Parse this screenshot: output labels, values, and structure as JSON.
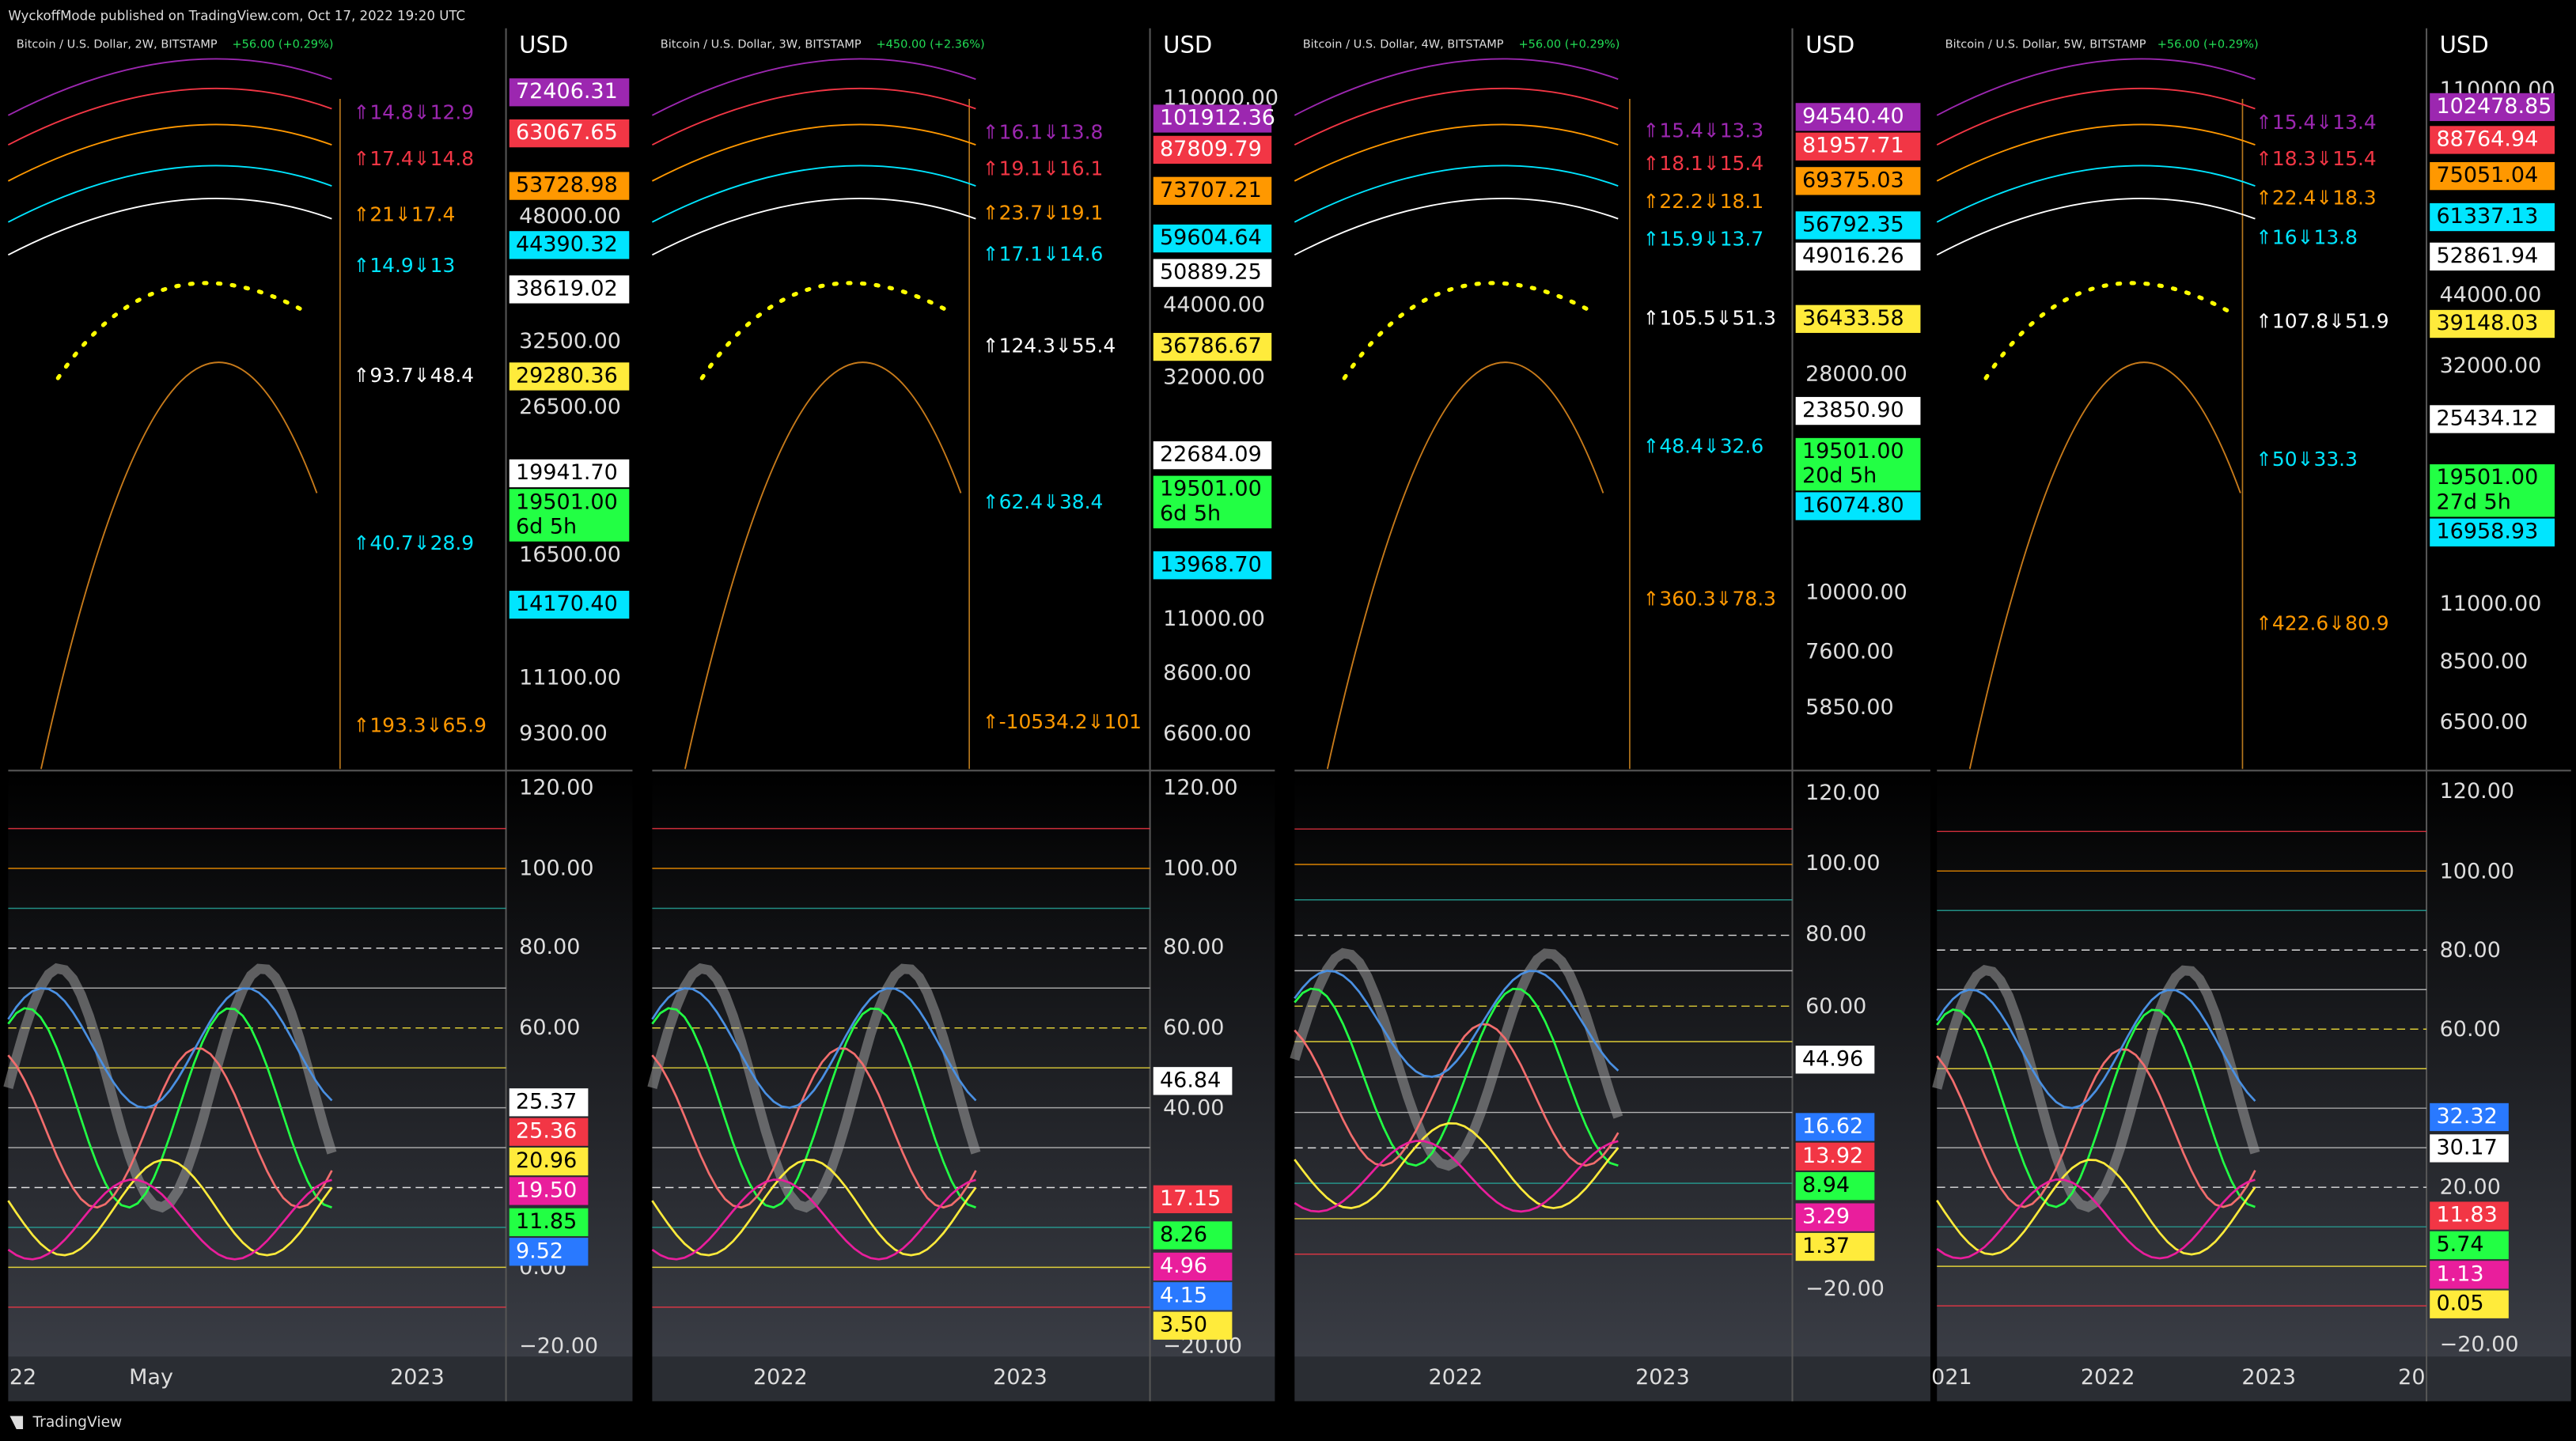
{
  "header": {
    "text": "WyckoffMode published on TradingView.com, Oct 17, 2022 19:20 UTC"
  },
  "footer": {
    "brand": "TradingView"
  },
  "panels": [
    {
      "title": "Bitcoin / U.S. Dollar, 2W, BITSTAMP",
      "change": "+56.00 (+0.29%)",
      "currency": "USD",
      "price_axis": [
        "48000.00",
        "32500.00",
        "26500.00",
        "16500.00",
        "11100.00",
        "9300.00"
      ],
      "price_tags": [
        {
          "label": "72406.31",
          "color": "#9c27b0"
        },
        {
          "label": "63067.65",
          "color": "#f23645"
        },
        {
          "label": "53728.98",
          "color": "#ff9800"
        },
        {
          "label": "44390.32",
          "color": "#00e5ff"
        },
        {
          "label": "38619.02",
          "color": "#ffffff"
        },
        {
          "label": "29280.36",
          "color": "#ffeb3b"
        },
        {
          "label": "19941.70",
          "color": "#ffffff"
        },
        {
          "label": "19501.00",
          "countdown": "6d 5h",
          "color": "#22ff44"
        },
        {
          "label": "14170.40",
          "color": "#00e5ff"
        }
      ],
      "annotations": [
        {
          "text": "⇑14.8⇓12.9",
          "color": "#9c27b0"
        },
        {
          "text": "⇑17.4⇓14.8",
          "color": "#f23645"
        },
        {
          "text": "⇑21⇓17.4",
          "color": "#ff9800"
        },
        {
          "text": "⇑14.9⇓13",
          "color": "#00e5ff"
        },
        {
          "text": "⇑93.7⇓48.4",
          "color": "#ffffff"
        },
        {
          "text": "⇑40.7⇓28.9",
          "color": "#00e5ff"
        },
        {
          "text": "⇑193.3⇓65.9",
          "color": "#ff9800"
        }
      ],
      "osc_axis": [
        "120.00",
        "100.00",
        "80.00",
        "60.00",
        "0.00",
        "−20.00"
      ],
      "osc_tags": [
        {
          "label": "25.37",
          "color": "#ffffff"
        },
        {
          "label": "25.36",
          "color": "#f23645"
        },
        {
          "label": "20.96",
          "color": "#ffeb3b"
        },
        {
          "label": "19.50",
          "color": "#e91e9c"
        },
        {
          "label": "11.85",
          "color": "#22ff44"
        },
        {
          "label": "9.52",
          "color": "#2979ff"
        }
      ],
      "time_axis": [
        "22",
        "May",
        "2023"
      ]
    },
    {
      "title": "Bitcoin / U.S. Dollar, 3W, BITSTAMP",
      "change": "+450.00 (+2.36%)",
      "currency": "USD",
      "price_axis": [
        "110000.00",
        "44000.00",
        "32000.00",
        "11000.00",
        "8600.00",
        "6600.00"
      ],
      "price_tags": [
        {
          "label": "101912.36",
          "color": "#9c27b0"
        },
        {
          "label": "87809.79",
          "color": "#f23645"
        },
        {
          "label": "73707.21",
          "color": "#ff9800"
        },
        {
          "label": "59604.64",
          "color": "#00e5ff"
        },
        {
          "label": "50889.25",
          "color": "#ffffff"
        },
        {
          "label": "36786.67",
          "color": "#ffeb3b"
        },
        {
          "label": "22684.09",
          "color": "#ffffff"
        },
        {
          "label": "19501.00",
          "countdown": "6d 5h",
          "color": "#22ff44"
        },
        {
          "label": "13968.70",
          "color": "#00e5ff"
        }
      ],
      "annotations": [
        {
          "text": "⇑16.1⇓13.8",
          "color": "#9c27b0"
        },
        {
          "text": "⇑19.1⇓16.1",
          "color": "#f23645"
        },
        {
          "text": "⇑23.7⇓19.1",
          "color": "#ff9800"
        },
        {
          "text": "⇑17.1⇓14.6",
          "color": "#00e5ff"
        },
        {
          "text": "⇑124.3⇓55.4",
          "color": "#ffffff"
        },
        {
          "text": "⇑62.4⇓38.4",
          "color": "#00e5ff"
        },
        {
          "text": "⇑-10534.2⇓101",
          "color": "#ff9800"
        }
      ],
      "osc_axis": [
        "120.00",
        "100.00",
        "80.00",
        "60.00",
        "40.00",
        "−20.00"
      ],
      "osc_tags": [
        {
          "label": "46.84",
          "color": "#ffffff"
        },
        {
          "label": "17.15",
          "color": "#f23645"
        },
        {
          "label": "8.26",
          "color": "#22ff44"
        },
        {
          "label": "4.96",
          "color": "#e91e9c"
        },
        {
          "label": "4.15",
          "color": "#2979ff"
        },
        {
          "label": "3.50",
          "color": "#ffeb3b"
        }
      ],
      "time_axis": [
        "2022",
        "2023"
      ]
    },
    {
      "title": "Bitcoin / U.S. Dollar, 4W, BITSTAMP",
      "change": "+56.00 (+0.29%)",
      "currency": "USD",
      "price_axis": [
        "28000.00",
        "10000.00",
        "7600.00",
        "5850.00"
      ],
      "price_tags": [
        {
          "label": "94540.40",
          "color": "#9c27b0"
        },
        {
          "label": "81957.71",
          "color": "#f23645"
        },
        {
          "label": "69375.03",
          "color": "#ff9800"
        },
        {
          "label": "56792.35",
          "color": "#00e5ff"
        },
        {
          "label": "49016.26",
          "color": "#ffffff"
        },
        {
          "label": "36433.58",
          "color": "#ffeb3b"
        },
        {
          "label": "23850.90",
          "color": "#ffffff"
        },
        {
          "label": "19501.00",
          "countdown": "20d 5h",
          "color": "#22ff44"
        },
        {
          "label": "16074.80",
          "color": "#00e5ff"
        }
      ],
      "annotations": [
        {
          "text": "⇑15.4⇓13.3",
          "color": "#9c27b0"
        },
        {
          "text": "⇑18.1⇓15.4",
          "color": "#f23645"
        },
        {
          "text": "⇑22.2⇓18.1",
          "color": "#ff9800"
        },
        {
          "text": "⇑15.9⇓13.7",
          "color": "#00e5ff"
        },
        {
          "text": "⇑105.5⇓51.3",
          "color": "#ffffff"
        },
        {
          "text": "⇑48.4⇓32.6",
          "color": "#00e5ff"
        },
        {
          "text": "⇑360.3⇓78.3",
          "color": "#ff9800"
        }
      ],
      "osc_axis": [
        "120.00",
        "100.00",
        "80.00",
        "60.00",
        "−20.00"
      ],
      "osc_tags": [
        {
          "label": "44.96",
          "color": "#ffffff"
        },
        {
          "label": "16.62",
          "color": "#2979ff"
        },
        {
          "label": "13.92",
          "color": "#f23645"
        },
        {
          "label": "8.94",
          "color": "#22ff44"
        },
        {
          "label": "3.29",
          "color": "#e91e9c"
        },
        {
          "label": "1.37",
          "color": "#ffeb3b"
        }
      ],
      "time_axis": [
        "2022",
        "2023"
      ]
    },
    {
      "title": "Bitcoin / U.S. Dollar, 5W, BITSTAMP",
      "change": "+56.00 (+0.29%)",
      "currency": "USD",
      "price_axis": [
        "110000.00",
        "44000.00",
        "32000.00",
        "11000.00",
        "8500.00",
        "6500.00"
      ],
      "price_tags": [
        {
          "label": "102478.85",
          "color": "#9c27b0"
        },
        {
          "label": "88764.94",
          "color": "#f23645"
        },
        {
          "label": "75051.04",
          "color": "#ff9800"
        },
        {
          "label": "61337.13",
          "color": "#00e5ff"
        },
        {
          "label": "52861.94",
          "color": "#ffffff"
        },
        {
          "label": "39148.03",
          "color": "#ffeb3b"
        },
        {
          "label": "25434.12",
          "color": "#ffffff"
        },
        {
          "label": "19501.00",
          "countdown": "27d 5h",
          "color": "#22ff44"
        },
        {
          "label": "16958.93",
          "color": "#00e5ff"
        }
      ],
      "annotations": [
        {
          "text": "⇑15.4⇓13.4",
          "color": "#9c27b0"
        },
        {
          "text": "⇑18.3⇓15.4",
          "color": "#f23645"
        },
        {
          "text": "⇑22.4⇓18.3",
          "color": "#ff9800"
        },
        {
          "text": "⇑16⇓13.8",
          "color": "#00e5ff"
        },
        {
          "text": "⇑107.8⇓51.9",
          "color": "#ffffff"
        },
        {
          "text": "⇑50⇓33.3",
          "color": "#00e5ff"
        },
        {
          "text": "⇑422.6⇓80.9",
          "color": "#ff9800"
        }
      ],
      "osc_axis": [
        "120.00",
        "100.00",
        "80.00",
        "60.00",
        "20.00",
        "−20.00"
      ],
      "osc_tags": [
        {
          "label": "32.32",
          "color": "#2979ff"
        },
        {
          "label": "30.17",
          "color": "#ffffff"
        },
        {
          "label": "11.83",
          "color": "#f23645"
        },
        {
          "label": "5.74",
          "color": "#22ff44"
        },
        {
          "label": "1.13",
          "color": "#e91e9c"
        },
        {
          "label": "0.05",
          "color": "#ffeb3b"
        }
      ],
      "time_axis": [
        "021",
        "2022",
        "2023",
        "20"
      ]
    }
  ]
}
